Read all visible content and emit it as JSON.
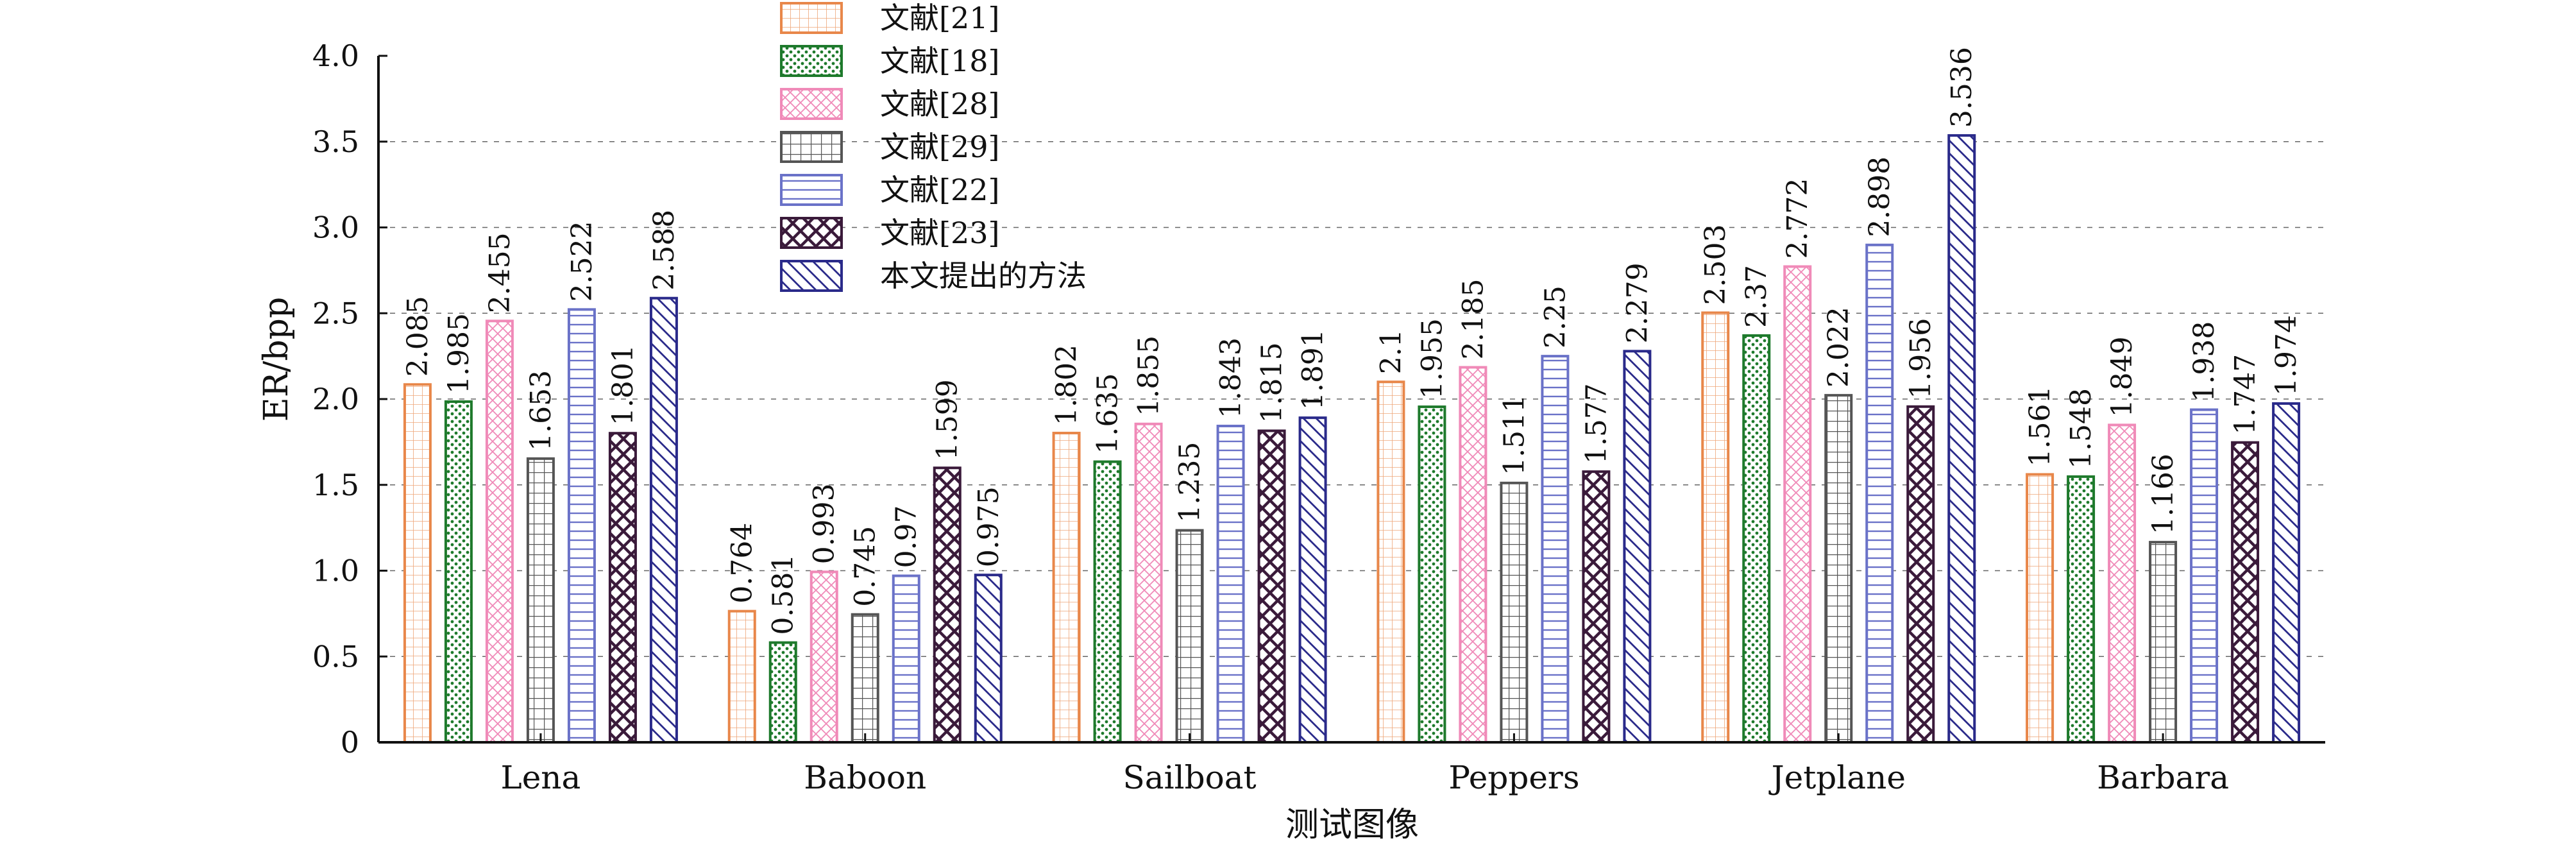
{
  "chart_data": {
    "type": "bar",
    "xlabel": "测试图像",
    "ylabel": "ER/bpp",
    "ylim": [
      0,
      4.0
    ],
    "yticks": [
      "0",
      "0.5",
      "1.0",
      "1.5",
      "2.0",
      "2.5",
      "3.0",
      "3.5",
      "4.0"
    ],
    "grid": false,
    "legend_position": "top-center",
    "categories": [
      "Lena",
      "Baboon",
      "Sailboat",
      "Peppers",
      "Jetplane",
      "Barbara"
    ],
    "series": [
      {
        "name": "文献[21]",
        "color": "#e8874a",
        "pattern": "small-grid",
        "values": [
          2.085,
          0.764,
          1.802,
          2.1,
          2.503,
          1.561
        ],
        "labels": [
          "2.085",
          "0.764",
          "1.802",
          "2.1",
          "2.503",
          "1.561"
        ]
      },
      {
        "name": "文献[18]",
        "color": "#1e7a2c",
        "pattern": "dots",
        "values": [
          1.985,
          0.581,
          1.635,
          1.955,
          2.37,
          1.548
        ],
        "labels": [
          "1.985",
          "0.581",
          "1.635",
          "1.955",
          "2.37",
          "1.548"
        ]
      },
      {
        "name": "文献[28]",
        "color": "#f08ab8",
        "pattern": "crosshatch",
        "values": [
          2.455,
          0.993,
          1.855,
          2.185,
          2.772,
          1.849
        ],
        "labels": [
          "2.455",
          "0.993",
          "1.855",
          "2.185",
          "2.772",
          "1.849"
        ]
      },
      {
        "name": "文献[29]",
        "color": "#555555",
        "pattern": "grid",
        "values": [
          1.653,
          0.745,
          1.235,
          1.511,
          2.022,
          1.166
        ],
        "labels": [
          "1.653",
          "0.745",
          "1.235",
          "1.511",
          "2.022",
          "1.166"
        ]
      },
      {
        "name": "文献[22]",
        "color": "#6a72c8",
        "pattern": "horizontal",
        "values": [
          2.522,
          0.97,
          1.843,
          2.25,
          2.898,
          1.938
        ],
        "labels": [
          "2.522",
          "0.97",
          "1.843",
          "2.25",
          "2.898",
          "1.938"
        ]
      },
      {
        "name": "文献[23]",
        "color": "#3a1a3a",
        "pattern": "diag-cross",
        "values": [
          1.801,
          1.599,
          1.815,
          1.577,
          1.956,
          1.747
        ],
        "labels": [
          "1.801",
          "1.599",
          "1.815",
          "1.577",
          "1.956",
          "1.747"
        ]
      },
      {
        "name": "本文提出的方法",
        "color": "#2a2a8a",
        "pattern": "diag-back",
        "values": [
          2.588,
          0.975,
          1.891,
          2.279,
          3.536,
          1.974
        ],
        "labels": [
          "2.588",
          "0.975",
          "1.891",
          "2.279",
          "3.536",
          "1.974"
        ]
      }
    ]
  }
}
